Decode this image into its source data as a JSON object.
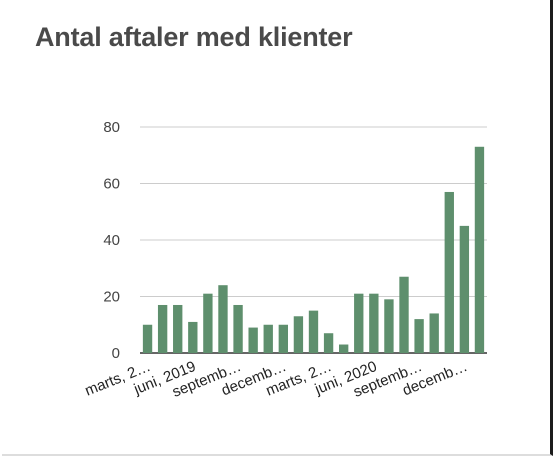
{
  "chart_data": {
    "type": "bar",
    "title": "Antal aftaler med klienter",
    "xlabel": "",
    "ylabel": "",
    "ylim": [
      0,
      80
    ],
    "yticks": [
      0,
      20,
      40,
      60,
      80
    ],
    "grid": true,
    "bar_color": "#5e8f6d",
    "values": [
      10,
      17,
      17,
      11,
      21,
      24,
      17,
      9,
      10,
      10,
      13,
      15,
      7,
      3,
      21,
      21,
      19,
      27,
      12,
      14,
      57,
      45,
      73
    ],
    "tick_labels": [
      {
        "index": 0,
        "label": "marts, 2…"
      },
      {
        "index": 3,
        "label": "juni, 2019"
      },
      {
        "index": 6,
        "label": "septemb…"
      },
      {
        "index": 9,
        "label": "decemb…"
      },
      {
        "index": 12,
        "label": "marts, 2…"
      },
      {
        "index": 15,
        "label": "juni, 2020"
      },
      {
        "index": 18,
        "label": "septemb…"
      },
      {
        "index": 21,
        "label": "decemb…"
      }
    ]
  }
}
